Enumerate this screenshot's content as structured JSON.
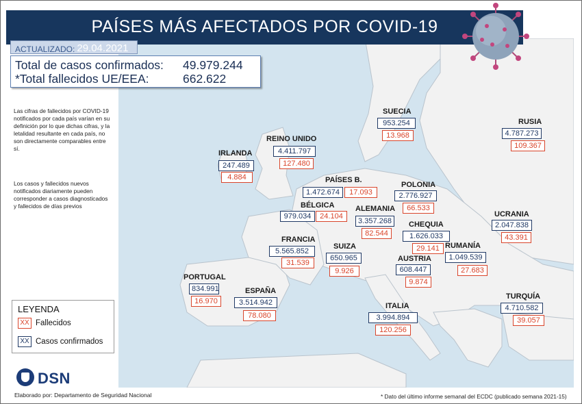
{
  "title": "PAÍSES MÁS AFECTADOS POR COVID-19",
  "updated": {
    "label": "ACTUALIZADO:",
    "date": "29.04.2021"
  },
  "totals": {
    "cases_label": "Total de casos confirmados:",
    "cases_value": "49.979.244",
    "deaths_label": "*Total fallecidos UE/EEA:",
    "deaths_value": "662.622"
  },
  "notes": {
    "note1": "Las cifras de fallecidos por COVID-19 notificados por cada país varían en su definición por lo que dichas cifras, y la letalidad resultante en cada país, no son directamente comparables entre sí.",
    "note2": "Los casos y fallecidos nuevos notificados diariamente pueden corresponder a casos diagnosticados y fallecidos de días previos"
  },
  "legend": {
    "title": "LEYENDA",
    "deaths_swatch": "XX",
    "deaths_label": "Fallecidos",
    "cases_swatch": "XX",
    "cases_label": "Casos confirmados"
  },
  "logo_text": "DSN",
  "credit": "Elaborado por: Departamento de Seguridad Nacional",
  "footnote": "* Dato del último informe semanal del ECDC (publicado semana 2021-15)",
  "colors": {
    "header": "#17365d",
    "cases": "#1f3864",
    "deaths": "#d9442a",
    "sea": "#d3e4ef",
    "land": "#f2f2f2"
  },
  "countries": [
    {
      "key": "irlanda",
      "name": "IRLANDA",
      "cases": "247.489",
      "deaths": "4.884"
    },
    {
      "key": "reino_unido",
      "name": "REINO UNIDO",
      "cases": "4.411.797",
      "deaths": "127.480"
    },
    {
      "key": "paises_bajos",
      "name": "PAÍSES B.",
      "cases": "1.472.674",
      "deaths": "17.093"
    },
    {
      "key": "belgica",
      "name": "BÉLGICA",
      "cases": "979.034",
      "deaths": "24.104"
    },
    {
      "key": "francia",
      "name": "FRANCIA",
      "cases": "5.565.852",
      "deaths": "31.539"
    },
    {
      "key": "portugal",
      "name": "PORTUGAL",
      "cases": "834.991",
      "deaths": "16.970"
    },
    {
      "key": "espana",
      "name": "ESPAÑA",
      "cases": "3.514.942",
      "deaths": "78.080"
    },
    {
      "key": "suecia",
      "name": "SUECIA",
      "cases": "953.254",
      "deaths": "13.968"
    },
    {
      "key": "alemania",
      "name": "ALEMANIA",
      "cases": "3.357.268",
      "deaths": "82.544"
    },
    {
      "key": "suiza",
      "name": "SUIZA",
      "cases": "650.965",
      "deaths": "9.926"
    },
    {
      "key": "italia",
      "name": "ITALIA",
      "cases": "3.994.894",
      "deaths": "120.256"
    },
    {
      "key": "polonia",
      "name": "POLONIA",
      "cases": "2.776.927",
      "deaths": "66.533"
    },
    {
      "key": "chequia",
      "name": "CHEQUIA",
      "cases": "1.626.033",
      "deaths": "29.141"
    },
    {
      "key": "austria",
      "name": "AUSTRIA",
      "cases": "608.447",
      "deaths": "9.874"
    },
    {
      "key": "rumania",
      "name": "RUMANÍA",
      "cases": "1.049.539",
      "deaths": "27.683"
    },
    {
      "key": "rusia",
      "name": "RUSIA",
      "cases": "4.787.273",
      "deaths": "109.367"
    },
    {
      "key": "ucrania",
      "name": "UCRANIA",
      "cases": "2.047.838",
      "deaths": "43.391"
    },
    {
      "key": "turquia",
      "name": "TURQUÍA",
      "cases": "4.710.582",
      "deaths": "39.057"
    }
  ]
}
